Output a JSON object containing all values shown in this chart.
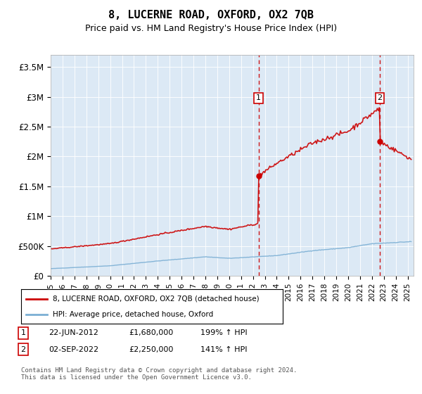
{
  "title": "8, LUCERNE ROAD, OXFORD, OX2 7QB",
  "subtitle": "Price paid vs. HM Land Registry's House Price Index (HPI)",
  "ylabel_ticks": [
    "£0",
    "£500K",
    "£1M",
    "£1.5M",
    "£2M",
    "£2.5M",
    "£3M",
    "£3.5M"
  ],
  "ytick_vals": [
    0,
    500000,
    1000000,
    1500000,
    2000000,
    2500000,
    3000000,
    3500000
  ],
  "ylim": [
    0,
    3700000
  ],
  "xlim_start": 1995.0,
  "xlim_end": 2025.5,
  "background_color": "#dce9f5",
  "hpi_color": "#7bafd4",
  "price_color": "#cc0000",
  "vline_color": "#cc0000",
  "marker1_x": 2012.47,
  "marker1_y": 1680000,
  "marker1_label": "1",
  "marker1_date": "22-JUN-2012",
  "marker1_price": "£1,680,000",
  "marker1_pct": "199% ↑ HPI",
  "marker2_x": 2022.67,
  "marker2_y": 2250000,
  "marker2_label": "2",
  "marker2_date": "02-SEP-2022",
  "marker2_price": "£2,250,000",
  "marker2_pct": "141% ↑ HPI",
  "legend_line1": "8, LUCERNE ROAD, OXFORD, OX2 7QB (detached house)",
  "legend_line2": "HPI: Average price, detached house, Oxford",
  "footnote": "Contains HM Land Registry data © Crown copyright and database right 2024.\nThis data is licensed under the Open Government Licence v3.0.",
  "xtick_years": [
    1995,
    1996,
    1997,
    1998,
    1999,
    2000,
    2001,
    2002,
    2003,
    2004,
    2005,
    2006,
    2007,
    2008,
    2009,
    2010,
    2011,
    2012,
    2013,
    2014,
    2015,
    2016,
    2017,
    2018,
    2019,
    2020,
    2021,
    2022,
    2023,
    2024,
    2025
  ]
}
